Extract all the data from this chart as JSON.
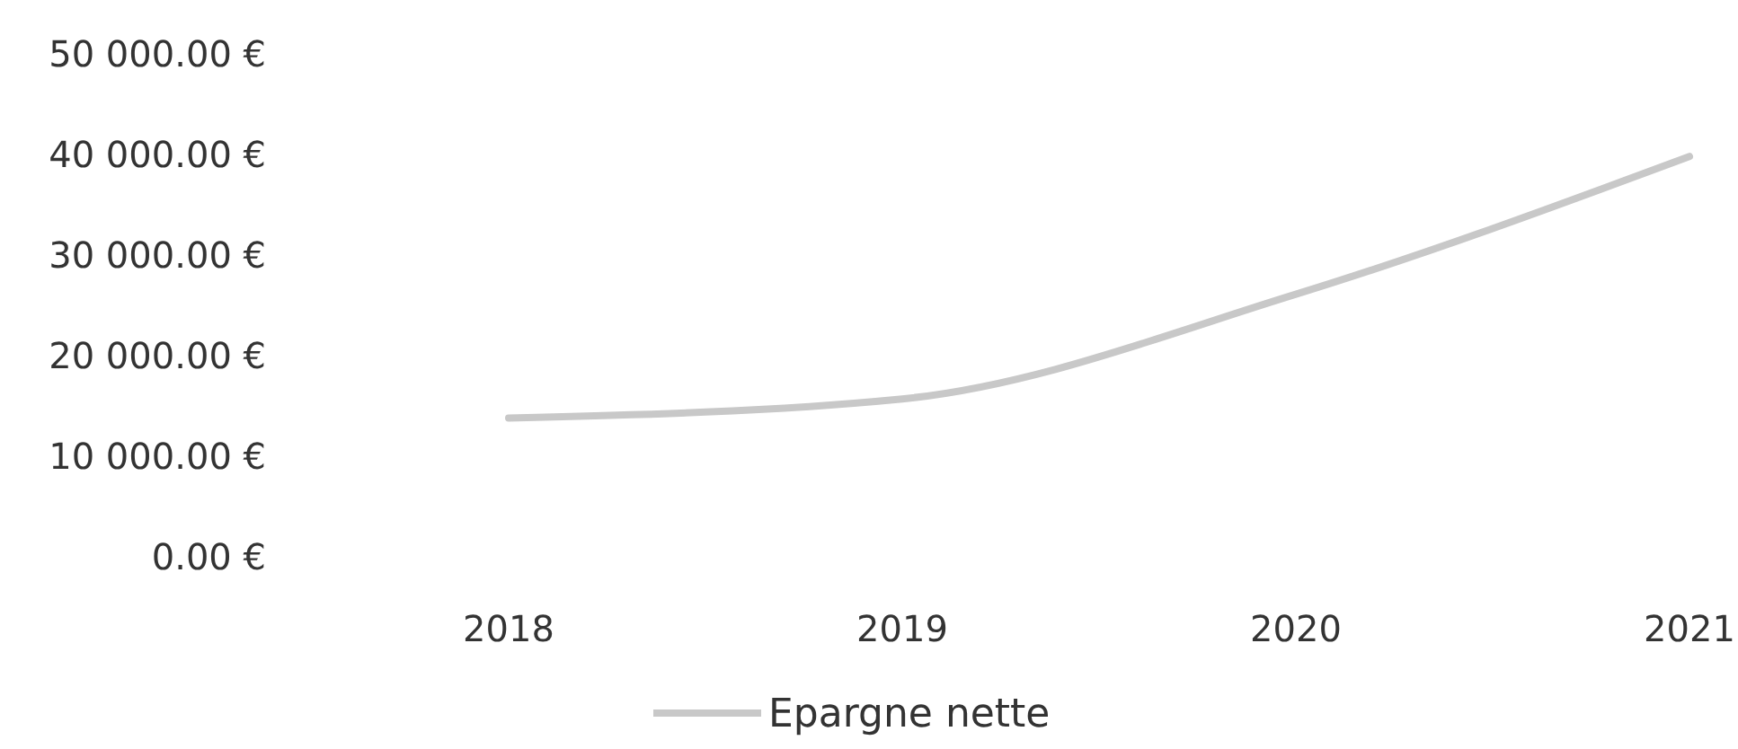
{
  "chart_data": {
    "type": "line",
    "categories": [
      "2018",
      "2019",
      "2020",
      "2021"
    ],
    "series": [
      {
        "name": "Epargne nette",
        "color": "#c8c8c8",
        "values": [
          13800,
          15700,
          26100,
          39800
        ]
      }
    ],
    "ylim": [
      0,
      50000
    ],
    "yticks": [
      {
        "value": 0,
        "label": "0.00 €"
      },
      {
        "value": 10000,
        "label": "10 000.00 €"
      },
      {
        "value": 20000,
        "label": "20 000.00 €"
      },
      {
        "value": 30000,
        "label": "30 000.00 €"
      },
      {
        "value": 40000,
        "label": "40 000.00 €"
      },
      {
        "value": 50000,
        "label": "50 000.00 €"
      }
    ],
    "grid": false,
    "legend": "bottom",
    "marker": "none",
    "line_style": "solid"
  }
}
